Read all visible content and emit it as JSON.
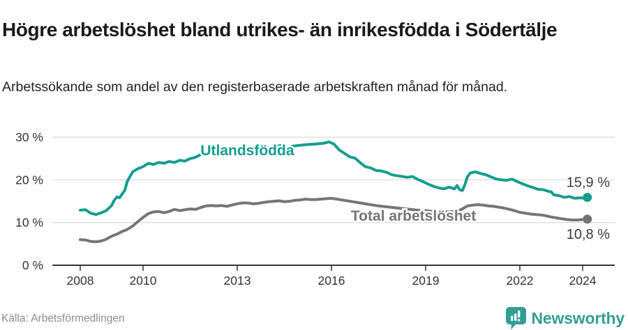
{
  "header": {
    "title": "Högre arbetslöshet bland utrikes- än inrikesfödda i Södertälje",
    "subtitle": "Arbetssökande som andel av den registerbaserade arbetskraften månad för månad."
  },
  "footer": {
    "source": "Källa: Arbetsförmedlingen",
    "brand": "Newsworthy"
  },
  "colors": {
    "accent": "#149e8e",
    "total_gray": "#757575",
    "grid": "#dcdcdc",
    "axis": "#333333",
    "tick_text": "#333333",
    "value_label_text": "#3a3a3a",
    "brand_teal": "#339e96"
  },
  "chart_data": {
    "type": "line",
    "unit": "%",
    "title": "Högre arbetslöshet bland utrikes- än inrikesfödda i Södertälje",
    "xlabel": "",
    "ylabel": "",
    "ylim": [
      0,
      30
    ],
    "grid": "horizontal",
    "legend_position": "inline-labels",
    "x_axis": {
      "ticks": [
        {
          "label": "2008",
          "value": 2008
        },
        {
          "label": "2010",
          "value": 2010
        },
        {
          "label": "2013",
          "value": 2013
        },
        {
          "label": "2016",
          "value": 2016
        },
        {
          "label": "2019",
          "value": 2019
        },
        {
          "label": "2022",
          "value": 2022
        },
        {
          "label": "2024",
          "value": 2024
        }
      ]
    },
    "y_axis": {
      "ticks": [
        {
          "label": "30 %",
          "value": 30
        },
        {
          "label": "20 %",
          "value": 20
        },
        {
          "label": "10 %",
          "value": 10
        },
        {
          "label": "0 %",
          "value": 0
        }
      ]
    },
    "series": [
      {
        "name": "Utlandsfödda",
        "color": "#149e8e",
        "end_label": "15,9 %",
        "end_label_dy": -15,
        "name_pos": [
          2011.83,
          26.9
        ],
        "points": [
          [
            2008.0,
            12.9
          ],
          [
            2008.17,
            13.0
          ],
          [
            2008.33,
            12.2
          ],
          [
            2008.5,
            11.9
          ],
          [
            2008.67,
            12.3
          ],
          [
            2008.83,
            12.8
          ],
          [
            2009.0,
            14.0
          ],
          [
            2009.08,
            15.2
          ],
          [
            2009.17,
            16.0
          ],
          [
            2009.25,
            15.8
          ],
          [
            2009.42,
            17.6
          ],
          [
            2009.5,
            19.7
          ],
          [
            2009.67,
            21.9
          ],
          [
            2009.83,
            22.6
          ],
          [
            2010.0,
            23.1
          ],
          [
            2010.17,
            23.9
          ],
          [
            2010.33,
            23.6
          ],
          [
            2010.5,
            24.1
          ],
          [
            2010.67,
            23.9
          ],
          [
            2010.83,
            24.3
          ],
          [
            2011.0,
            24.1
          ],
          [
            2011.17,
            24.6
          ],
          [
            2011.33,
            24.4
          ],
          [
            2011.5,
            25.0
          ],
          [
            2011.67,
            25.3
          ],
          [
            2011.83,
            25.9
          ],
          [
            2012.0,
            26.3
          ],
          [
            2012.17,
            26.6
          ],
          [
            2012.33,
            26.3
          ],
          [
            2012.67,
            26.6
          ],
          [
            2013.0,
            26.8
          ],
          [
            2013.33,
            27.0
          ],
          [
            2013.67,
            27.2
          ],
          [
            2014.0,
            27.5
          ],
          [
            2014.25,
            27.9
          ],
          [
            2014.42,
            28.1
          ],
          [
            2014.58,
            27.5
          ],
          [
            2014.75,
            27.9
          ],
          [
            2015.0,
            28.1
          ],
          [
            2015.25,
            28.3
          ],
          [
            2015.5,
            28.4
          ],
          [
            2015.75,
            28.6
          ],
          [
            2015.92,
            28.9
          ],
          [
            2016.08,
            28.4
          ],
          [
            2016.25,
            27.0
          ],
          [
            2016.42,
            26.2
          ],
          [
            2016.58,
            25.4
          ],
          [
            2016.75,
            25.1
          ],
          [
            2016.92,
            24.0
          ],
          [
            2017.08,
            23.1
          ],
          [
            2017.25,
            22.8
          ],
          [
            2017.42,
            22.2
          ],
          [
            2017.58,
            22.1
          ],
          [
            2017.75,
            21.8
          ],
          [
            2017.92,
            21.2
          ],
          [
            2018.08,
            21.0
          ],
          [
            2018.25,
            20.8
          ],
          [
            2018.42,
            20.6
          ],
          [
            2018.58,
            20.8
          ],
          [
            2018.75,
            20.1
          ],
          [
            2018.92,
            19.6
          ],
          [
            2019.08,
            19.0
          ],
          [
            2019.25,
            18.5
          ],
          [
            2019.42,
            18.1
          ],
          [
            2019.58,
            17.9
          ],
          [
            2019.75,
            18.3
          ],
          [
            2019.92,
            17.9
          ],
          [
            2020.0,
            18.7
          ],
          [
            2020.08,
            17.7
          ],
          [
            2020.17,
            17.5
          ],
          [
            2020.25,
            18.9
          ],
          [
            2020.33,
            20.7
          ],
          [
            2020.42,
            21.6
          ],
          [
            2020.58,
            21.9
          ],
          [
            2020.75,
            21.5
          ],
          [
            2020.92,
            21.2
          ],
          [
            2021.08,
            20.7
          ],
          [
            2021.25,
            20.2
          ],
          [
            2021.42,
            20.0
          ],
          [
            2021.58,
            19.9
          ],
          [
            2021.75,
            20.2
          ],
          [
            2021.92,
            19.6
          ],
          [
            2022.08,
            19.1
          ],
          [
            2022.25,
            18.6
          ],
          [
            2022.42,
            18.2
          ],
          [
            2022.58,
            17.8
          ],
          [
            2022.75,
            17.7
          ],
          [
            2022.92,
            17.3
          ],
          [
            2023.0,
            17.2
          ],
          [
            2023.08,
            16.5
          ],
          [
            2023.25,
            16.3
          ],
          [
            2023.42,
            15.9
          ],
          [
            2023.58,
            16.1
          ],
          [
            2023.75,
            15.7
          ],
          [
            2023.92,
            15.8
          ],
          [
            2024.08,
            15.7
          ],
          [
            2024.15,
            15.9
          ]
        ]
      },
      {
        "name": "Total arbetslöshet",
        "color": "#757575",
        "end_label": "10,8 %",
        "end_label_dy": 28,
        "name_pos": [
          2016.62,
          11.6
        ],
        "points": [
          [
            2008.0,
            6.0
          ],
          [
            2008.17,
            5.9
          ],
          [
            2008.33,
            5.6
          ],
          [
            2008.5,
            5.5
          ],
          [
            2008.67,
            5.7
          ],
          [
            2008.83,
            6.1
          ],
          [
            2009.0,
            6.8
          ],
          [
            2009.17,
            7.3
          ],
          [
            2009.33,
            7.9
          ],
          [
            2009.5,
            8.4
          ],
          [
            2009.67,
            9.2
          ],
          [
            2009.83,
            10.2
          ],
          [
            2010.0,
            11.2
          ],
          [
            2010.17,
            12.1
          ],
          [
            2010.33,
            12.5
          ],
          [
            2010.5,
            12.6
          ],
          [
            2010.67,
            12.3
          ],
          [
            2010.83,
            12.6
          ],
          [
            2011.0,
            13.1
          ],
          [
            2011.17,
            12.8
          ],
          [
            2011.33,
            13.0
          ],
          [
            2011.5,
            13.2
          ],
          [
            2011.67,
            13.1
          ],
          [
            2011.83,
            13.5
          ],
          [
            2012.0,
            13.9
          ],
          [
            2012.17,
            14.0
          ],
          [
            2012.33,
            13.9
          ],
          [
            2012.5,
            14.0
          ],
          [
            2012.67,
            13.8
          ],
          [
            2012.83,
            14.1
          ],
          [
            2013.0,
            14.4
          ],
          [
            2013.17,
            14.6
          ],
          [
            2013.33,
            14.6
          ],
          [
            2013.5,
            14.4
          ],
          [
            2013.67,
            14.5
          ],
          [
            2013.83,
            14.7
          ],
          [
            2014.0,
            14.9
          ],
          [
            2014.17,
            15.0
          ],
          [
            2014.33,
            15.1
          ],
          [
            2014.5,
            14.9
          ],
          [
            2014.67,
            15.0
          ],
          [
            2014.83,
            15.2
          ],
          [
            2015.0,
            15.3
          ],
          [
            2015.17,
            15.5
          ],
          [
            2015.33,
            15.4
          ],
          [
            2015.5,
            15.4
          ],
          [
            2015.67,
            15.5
          ],
          [
            2015.83,
            15.6
          ],
          [
            2016.0,
            15.7
          ],
          [
            2016.17,
            15.5
          ],
          [
            2016.33,
            15.3
          ],
          [
            2016.5,
            15.1
          ],
          [
            2016.67,
            14.9
          ],
          [
            2016.83,
            14.7
          ],
          [
            2017.0,
            14.5
          ],
          [
            2017.25,
            14.2
          ],
          [
            2017.5,
            13.9
          ],
          [
            2017.75,
            13.7
          ],
          [
            2018.0,
            13.5
          ],
          [
            2018.25,
            13.3
          ],
          [
            2018.5,
            13.1
          ],
          [
            2018.75,
            12.9
          ],
          [
            2019.0,
            12.8
          ],
          [
            2019.25,
            12.6
          ],
          [
            2019.5,
            12.5
          ],
          [
            2019.75,
            12.5
          ],
          [
            2020.0,
            12.7
          ],
          [
            2020.17,
            13.2
          ],
          [
            2020.33,
            13.9
          ],
          [
            2020.5,
            14.1
          ],
          [
            2020.67,
            14.2
          ],
          [
            2020.83,
            14.1
          ],
          [
            2021.0,
            13.9
          ],
          [
            2021.17,
            13.8
          ],
          [
            2021.33,
            13.6
          ],
          [
            2021.5,
            13.4
          ],
          [
            2021.67,
            13.1
          ],
          [
            2021.83,
            12.8
          ],
          [
            2022.0,
            12.4
          ],
          [
            2022.17,
            12.2
          ],
          [
            2022.33,
            12.0
          ],
          [
            2022.5,
            11.9
          ],
          [
            2022.67,
            11.8
          ],
          [
            2022.83,
            11.6
          ],
          [
            2023.0,
            11.3
          ],
          [
            2023.17,
            11.1
          ],
          [
            2023.33,
            10.9
          ],
          [
            2023.5,
            10.7
          ],
          [
            2023.67,
            10.6
          ],
          [
            2023.83,
            10.6
          ],
          [
            2024.0,
            10.7
          ],
          [
            2024.15,
            10.8
          ]
        ]
      }
    ]
  }
}
